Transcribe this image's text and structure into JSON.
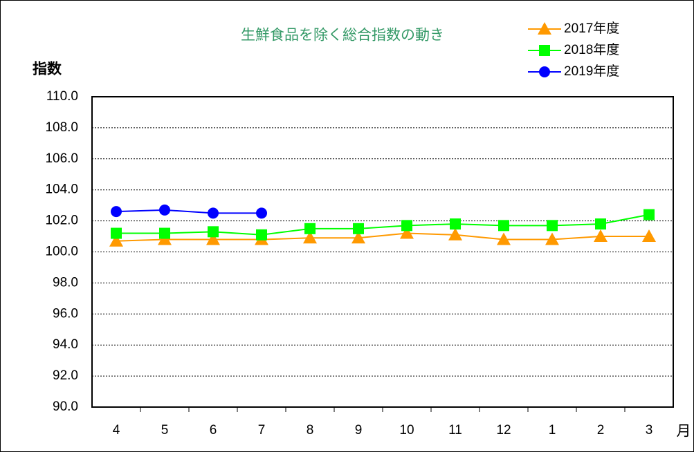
{
  "chart_data": {
    "type": "line",
    "title": "生鮮食品を除く総合指数の動き",
    "y_label": "指数",
    "x_label": "月",
    "categories": [
      "4",
      "5",
      "6",
      "7",
      "8",
      "9",
      "10",
      "11",
      "12",
      "1",
      "2",
      "3"
    ],
    "ylim": [
      90,
      110
    ],
    "yticks": [
      {
        "value": 90,
        "label": "90.0"
      },
      {
        "value": 92,
        "label": "92.0"
      },
      {
        "value": 94,
        "label": "94.0"
      },
      {
        "value": 96,
        "label": "96.0"
      },
      {
        "value": 98,
        "label": "98.0"
      },
      {
        "value": 100,
        "label": "100.0"
      },
      {
        "value": 102,
        "label": "102.0"
      },
      {
        "value": 104,
        "label": "104.0"
      },
      {
        "value": 106,
        "label": "106.0"
      },
      {
        "value": 108,
        "label": "108.0"
      },
      {
        "value": 110,
        "label": "110.0"
      }
    ],
    "grid": true,
    "legend": "top-right",
    "series": [
      {
        "name": "2017年度",
        "color": "#ff9900",
        "marker": "triangle",
        "values": [
          100.7,
          100.8,
          100.8,
          100.8,
          100.9,
          100.9,
          101.2,
          101.1,
          100.8,
          100.8,
          101.0,
          101.0
        ]
      },
      {
        "name": "2018年度",
        "color": "#00ff00",
        "marker": "square",
        "values": [
          101.2,
          101.2,
          101.3,
          101.1,
          101.5,
          101.5,
          101.7,
          101.8,
          101.7,
          101.7,
          101.8,
          102.4
        ]
      },
      {
        "name": "2019年度",
        "color": "#0000ff",
        "marker": "circle",
        "values": [
          102.6,
          102.7,
          102.5,
          102.5,
          null,
          null,
          null,
          null,
          null,
          null,
          null,
          null
        ]
      }
    ]
  }
}
